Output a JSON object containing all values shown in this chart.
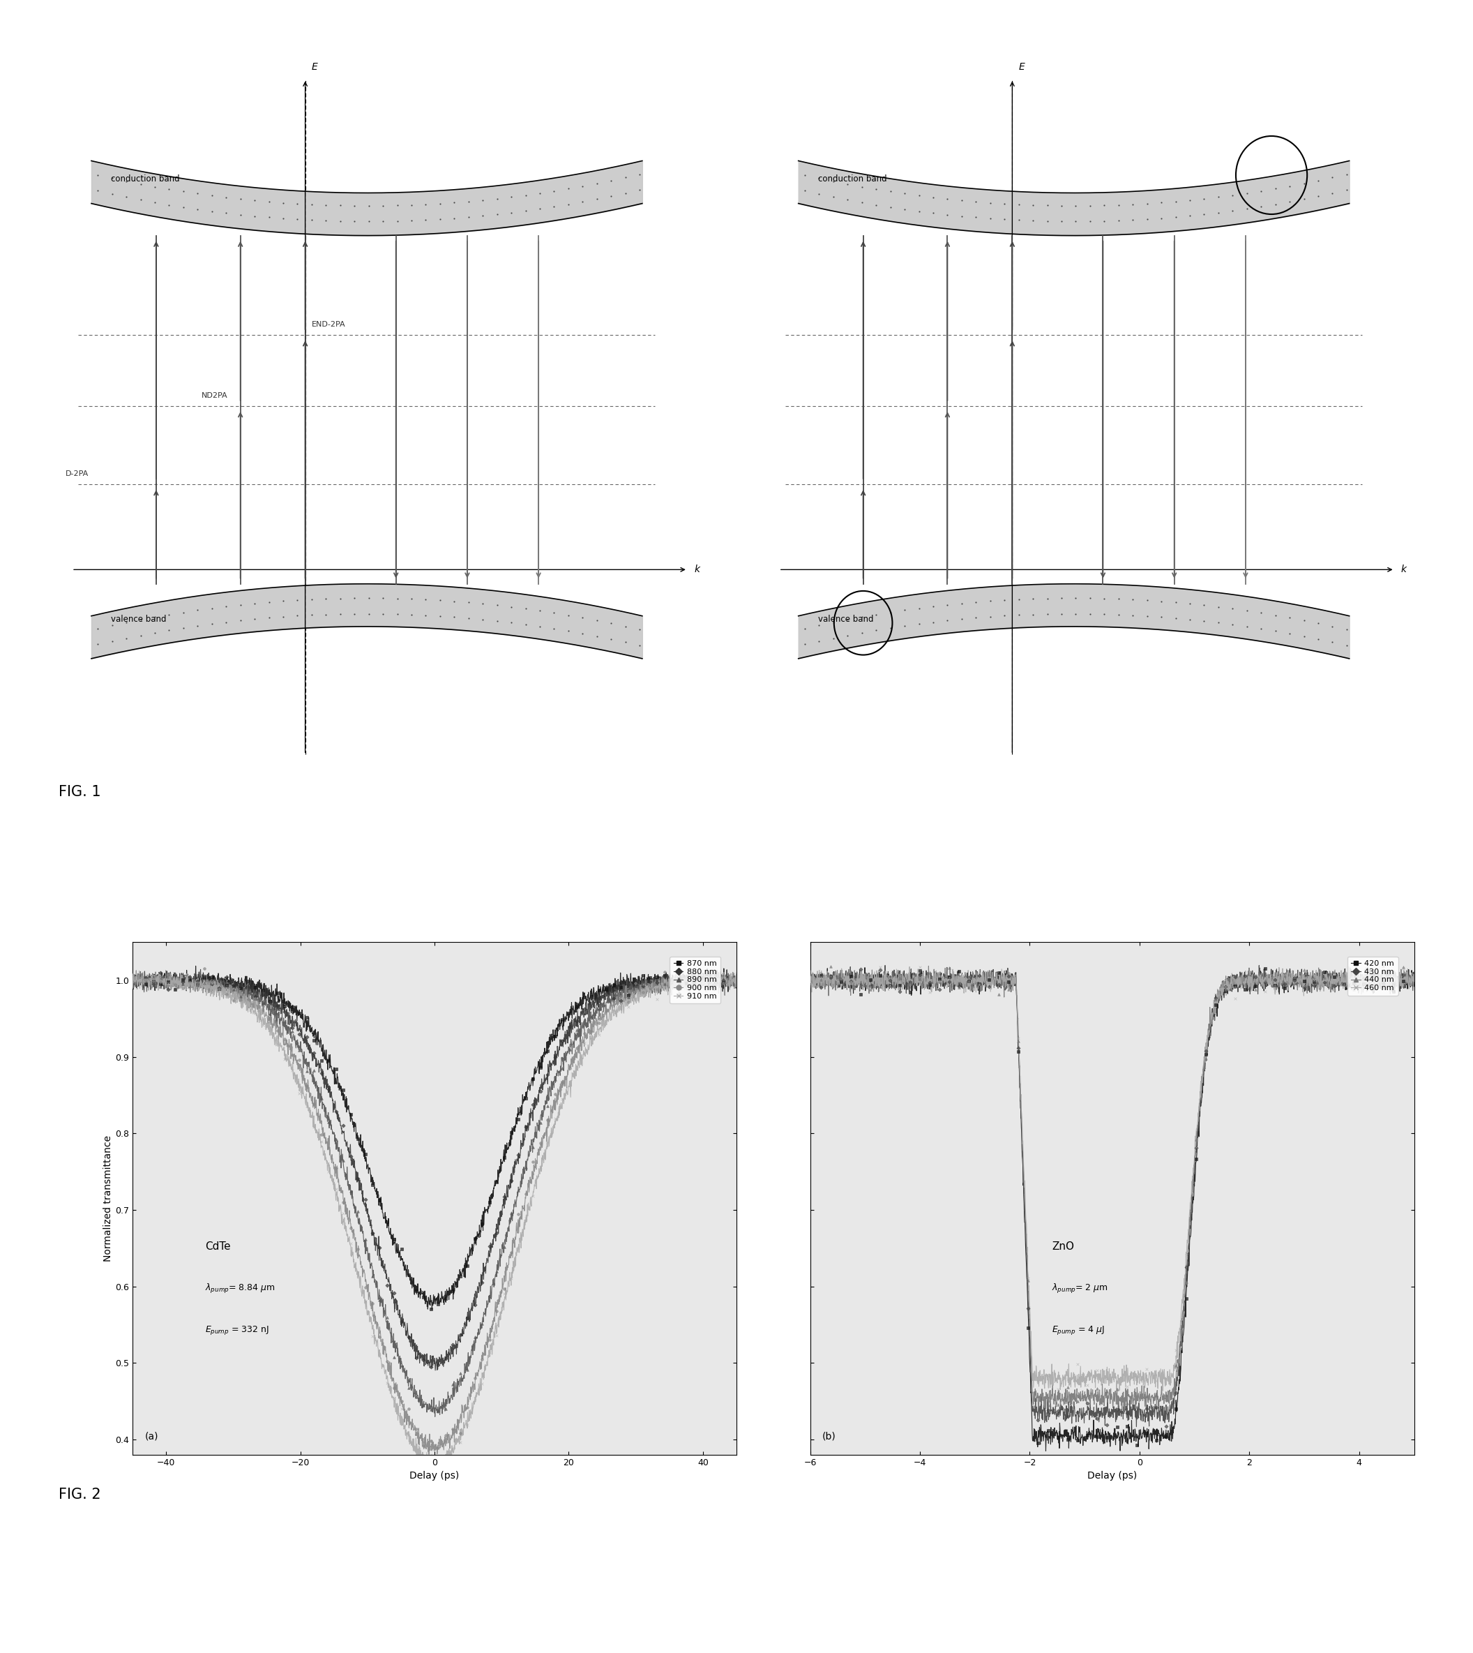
{
  "fig1_left": {
    "conduction_band_label": "conduction band",
    "valence_band_label": "valence band",
    "E_label": "E",
    "k_label": "k",
    "d2pa_label": "D-2PA",
    "nd2pa_label": "ND2PA",
    "end2pa_label": "END-2PA"
  },
  "fig2a": {
    "title": "CdTe",
    "pump_wavelength": "λ_pump = 8.84 μm",
    "pump_energy": "E_pump = 332 nJ",
    "legend_labels": [
      "870 nm",
      "880 nm",
      "890 nm",
      "900 nm",
      "910 nm"
    ],
    "xlabel": "Delay (ps)",
    "ylabel": "Normalized transmittance",
    "xlim": [
      -45,
      45
    ],
    "ylim": [
      0.38,
      1.05
    ],
    "yticks": [
      0.4,
      0.5,
      0.6,
      0.7,
      0.8,
      0.9,
      1.0
    ],
    "xticks": [
      -40,
      -20,
      0,
      20,
      40
    ],
    "panel_label": "(a)"
  },
  "fig2b": {
    "title": "ZnO",
    "pump_wavelength": "λ_pump = 2 μm",
    "pump_energy": "E_pump = 4 μJ",
    "legend_labels": [
      "420 nm",
      "430 nm",
      "440 nm",
      "460 nm"
    ],
    "xlabel": "Delay (ps)",
    "xlim": [
      -6,
      5
    ],
    "ylim": [
      0.38,
      1.05
    ],
    "yticks": [
      0.4,
      0.5,
      0.6,
      0.7,
      0.8,
      0.9,
      1.0
    ],
    "xticks": [
      -6,
      -4,
      -2,
      0,
      2,
      4
    ],
    "panel_label": "(b)"
  },
  "bg_color": "#e8e8e8",
  "line_colors_a": [
    "#111111",
    "#333333",
    "#555555",
    "#888888",
    "#aaaaaa"
  ],
  "line_colors_b": [
    "#111111",
    "#444444",
    "#777777",
    "#aaaaaa"
  ],
  "fig1_label": "FIG. 1",
  "fig2_label": "FIG. 2"
}
